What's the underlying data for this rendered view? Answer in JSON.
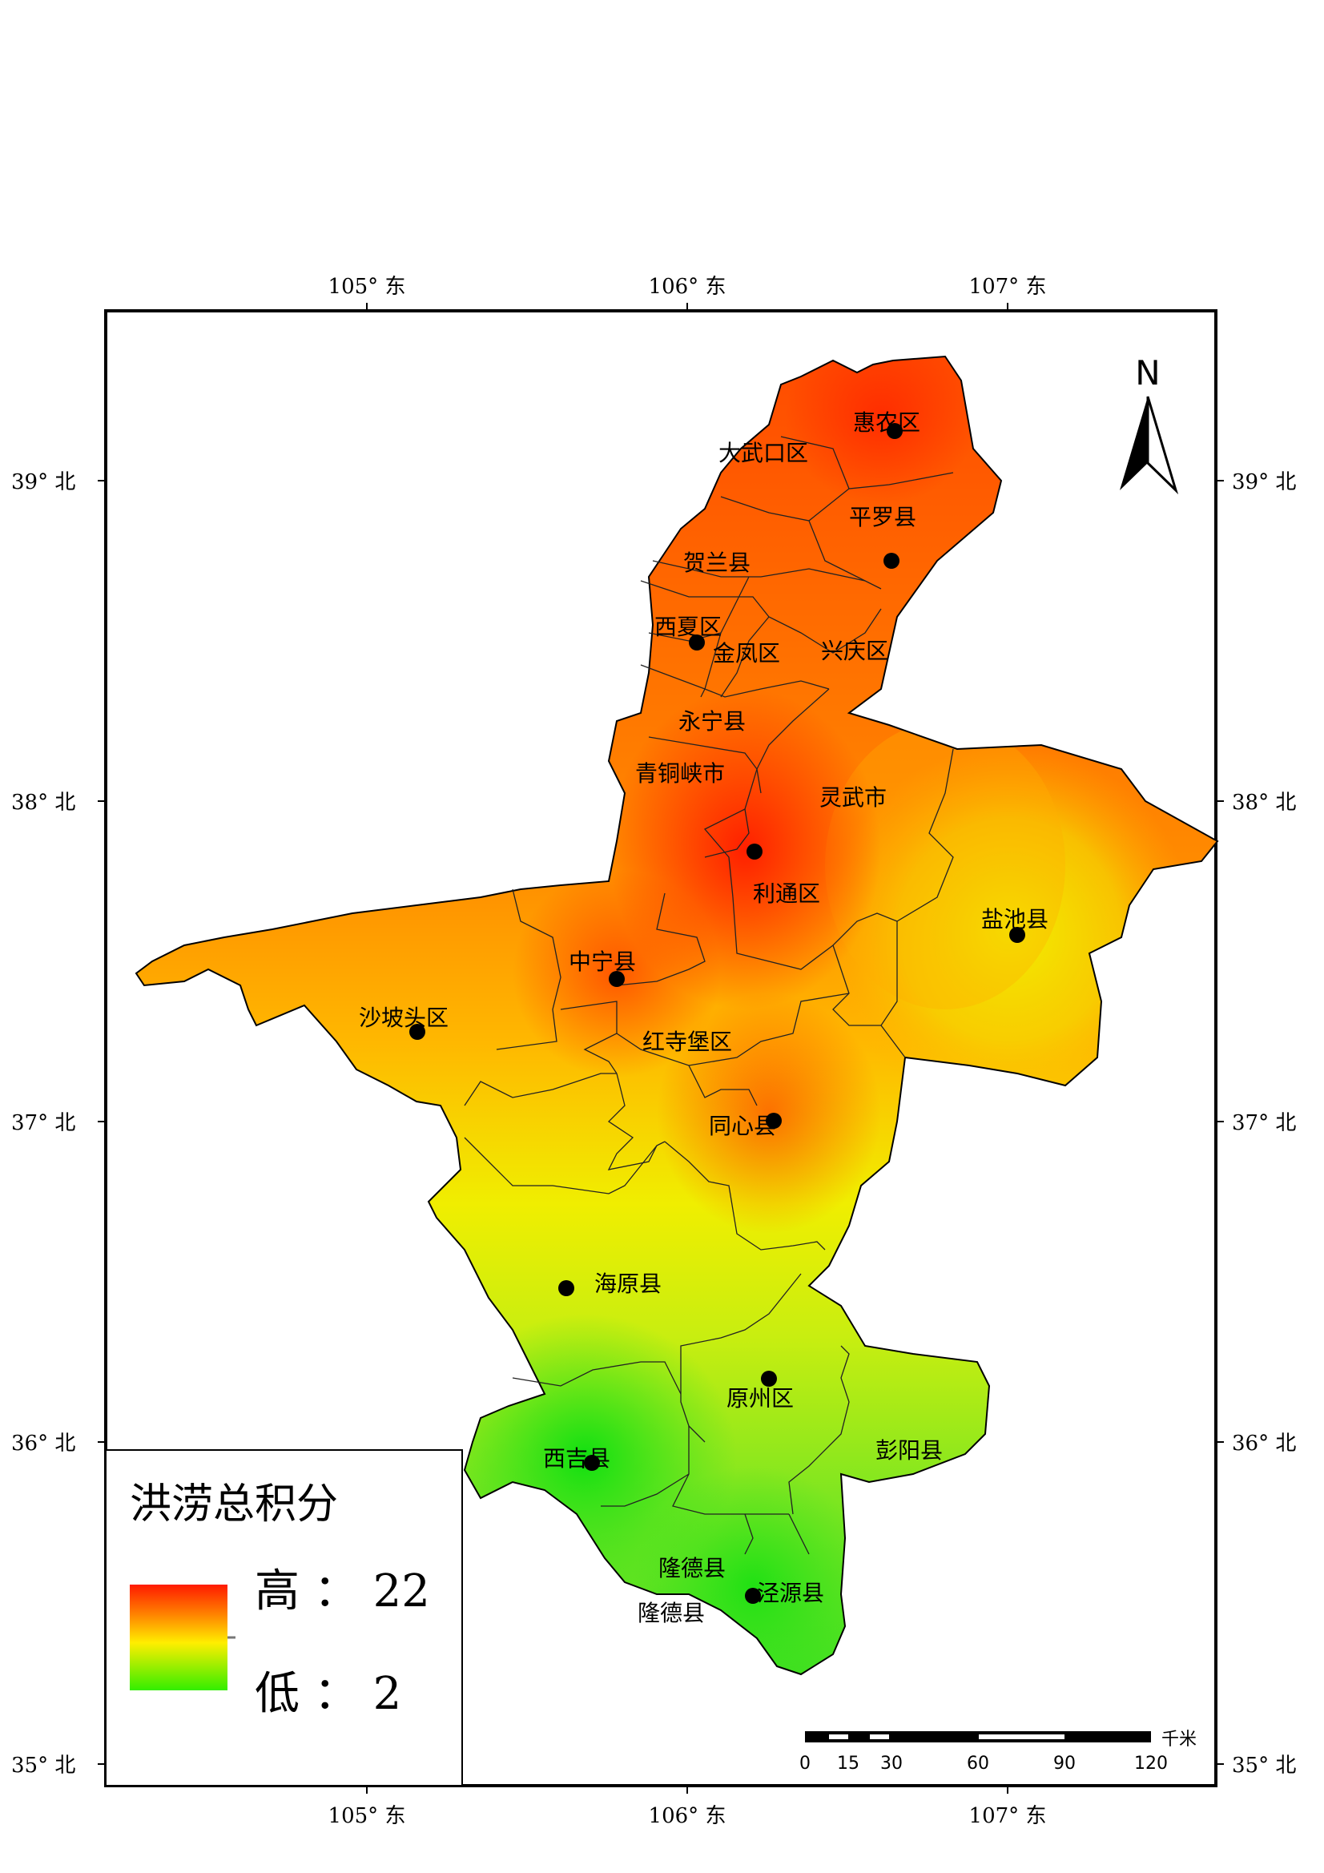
{
  "map": {
    "coordinates": {
      "top": [
        "105° 东",
        "106° 东",
        "107° 东"
      ],
      "bottom": [
        "105° 东",
        "106° 东",
        "107° 东"
      ],
      "left": [
        "39° 北",
        "38° 北",
        "37° 北",
        "36° 北",
        "35° 北"
      ],
      "right": [
        "39° 北",
        "38° 北",
        "37° 北",
        "36° 北",
        "35° 北"
      ]
    },
    "labels": {
      "huinong": "惠农区",
      "dawukou": "大武口区",
      "pingluo": "平罗县",
      "helan": "贺兰县",
      "xixia": "西夏区",
      "jinfeng": "金凤区",
      "xingqing": "兴庆区",
      "yongning": "永宁县",
      "qingtongxia": "青铜峡市",
      "lingwu": "灵武市",
      "litong": "利通区",
      "yanchi": "盐池县",
      "zhongning": "中宁县",
      "shapotou": "沙坡头区",
      "hongsibao": "红寺堡区",
      "tongxin": "同心县",
      "haiyuan": "海原县",
      "yuanzhou": "原州区",
      "pengyang": "彭阳县",
      "xiji": "西吉县",
      "longde": "隆德县",
      "longde_lower": "隆德县",
      "jingyuan": "泾源县"
    },
    "north_arrow": "N",
    "colors": {
      "high": "#ff1a00",
      "mid_high": "#ff9900",
      "mid": "#ffee00",
      "low": "#33ee00",
      "border": "#000000"
    }
  },
  "legend": {
    "title": "洪涝总积分",
    "high_label": "高 ： 22",
    "low_label": "低 ： 2"
  },
  "scale_bar": {
    "unit": "千米",
    "ticks": [
      "0",
      "15",
      "30",
      "60",
      "90",
      "120"
    ]
  }
}
